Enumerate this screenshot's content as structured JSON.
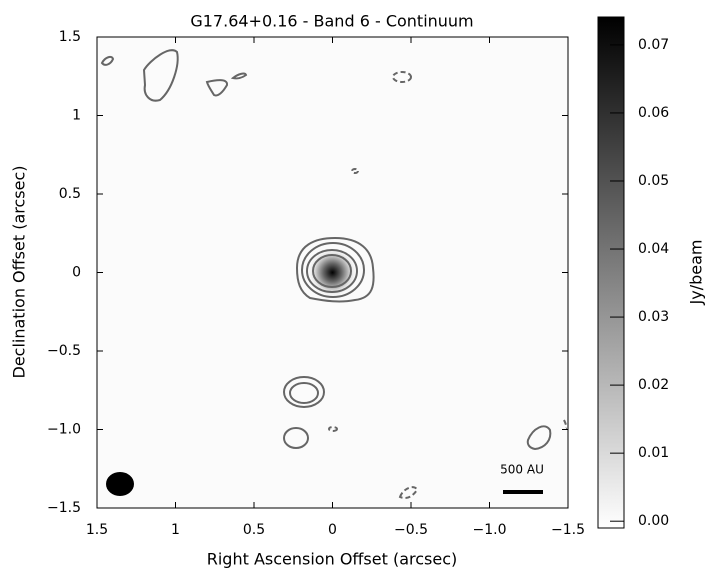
{
  "chart_data": {
    "type": "image",
    "title": "G17.64+0.16 - Band 6 - Continuum",
    "x_label": "Right Ascension Offset (arcsec)",
    "y_label": "Declination Offset (arcsec)",
    "colorbar_label": "Jy/beam",
    "scale_bar_label": "500 AU",
    "xlim": [
      1.5,
      -1.5
    ],
    "ylim": [
      -1.5,
      1.5
    ],
    "xticks": [
      1.5,
      1.0,
      0.5,
      0.0,
      {
        "value": -0.5,
        "label": "−0.5"
      },
      {
        "value": -1.0,
        "label": "−1.0"
      },
      {
        "value": -1.5,
        "label": "−1.5"
      }
    ],
    "yticks": [
      {
        "value": -1.5,
        "label": "−1.5"
      },
      {
        "value": -1.0,
        "label": "−1.0"
      },
      {
        "value": -0.5,
        "label": "−0.5"
      },
      0.0,
      0.5,
      1.0,
      1.5
    ],
    "clim": [
      -0.001,
      0.0741
    ],
    "cticks": [
      {
        "value": 0,
        "label": "0.00"
      },
      {
        "value": 0.01,
        "label": "0.01"
      },
      {
        "value": 0.02,
        "label": "0.02"
      },
      {
        "value": 0.03,
        "label": "0.03"
      },
      {
        "value": 0.04,
        "label": "0.04"
      },
      {
        "value": 0.05,
        "label": "0.05"
      },
      {
        "value": 0.06,
        "label": "0.06"
      },
      {
        "value": 0.07,
        "label": "0.07"
      }
    ],
    "peak": {
      "x": 0,
      "y": 0,
      "value": 0.0741
    }
  }
}
